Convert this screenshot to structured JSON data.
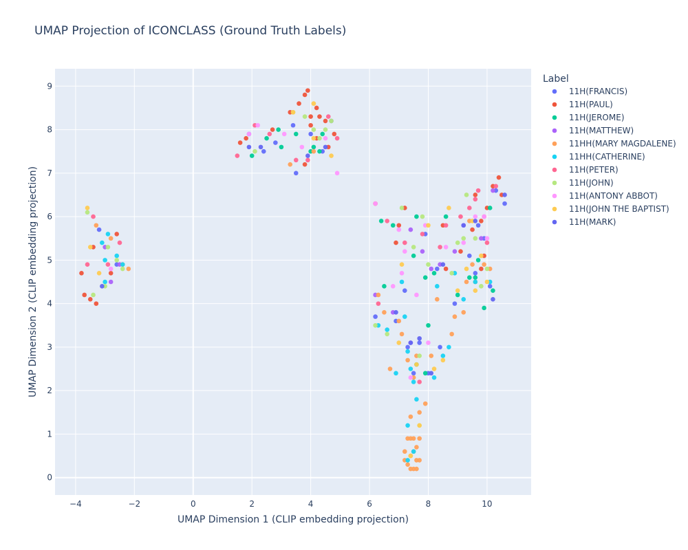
{
  "chart_data": {
    "type": "scatter",
    "title": "UMAP Projection of ICONCLASS (Ground Truth Labels)",
    "xlabel": "UMAP Dimension 1 (CLIP embedding projection)",
    "ylabel": "UMAP Dimension 2 (CLIP embedding projection)",
    "xlim": [
      -4.7,
      11.5
    ],
    "ylim": [
      -0.4,
      9.4
    ],
    "xticks": [
      -4,
      -2,
      0,
      2,
      4,
      6,
      8,
      10
    ],
    "yticks": [
      0,
      1,
      2,
      3,
      4,
      5,
      6,
      7,
      8,
      9
    ],
    "grid": true,
    "legend_title": "Label",
    "legend_position": "right",
    "series": [
      {
        "name": "11H(FRANCIS)",
        "color": "#636efa",
        "points": [
          [
            -3.2,
            5.7
          ],
          [
            -2.6,
            4.9
          ],
          [
            1.9,
            7.9
          ],
          [
            2.4,
            7.5
          ],
          [
            2.8,
            7.7
          ],
          [
            3.4,
            8.1
          ],
          [
            3.5,
            7.0
          ],
          [
            4.0,
            7.9
          ],
          [
            4.4,
            7.5
          ],
          [
            4.7,
            8.2
          ],
          [
            6.2,
            3.7
          ],
          [
            6.9,
            3.6
          ],
          [
            7.3,
            3.0
          ],
          [
            7.5,
            2.4
          ],
          [
            7.7,
            3.1
          ],
          [
            8.0,
            2.4
          ],
          [
            8.4,
            3.0
          ],
          [
            8.9,
            4.0
          ],
          [
            9.4,
            5.1
          ],
          [
            9.7,
            5.8
          ],
          [
            9.9,
            5.5
          ],
          [
            10.1,
            4.4
          ],
          [
            10.3,
            6.6
          ],
          [
            10.6,
            6.3
          ],
          [
            7.9,
            5.6
          ],
          [
            8.3,
            4.8
          ],
          [
            9.6,
            4.7
          ],
          [
            7.2,
            4.3
          ]
        ]
      },
      {
        "name": "11H(PAUL)",
        "color": "#ef553b",
        "points": [
          [
            -3.8,
            4.7
          ],
          [
            -3.7,
            4.2
          ],
          [
            -3.5,
            4.1
          ],
          [
            -3.3,
            4.0
          ],
          [
            -3.4,
            5.3
          ],
          [
            -2.6,
            5.6
          ],
          [
            -2.8,
            4.7
          ],
          [
            1.6,
            7.7
          ],
          [
            1.8,
            7.8
          ],
          [
            2.7,
            8.0
          ],
          [
            3.3,
            8.4
          ],
          [
            3.6,
            8.6
          ],
          [
            3.8,
            8.8
          ],
          [
            3.9,
            8.9
          ],
          [
            4.0,
            8.3
          ],
          [
            4.2,
            8.5
          ],
          [
            4.3,
            8.3
          ],
          [
            4.5,
            8.2
          ],
          [
            4.0,
            8.1
          ],
          [
            4.6,
            7.6
          ],
          [
            4.8,
            7.9
          ],
          [
            3.8,
            7.2
          ],
          [
            4.2,
            7.8
          ],
          [
            6.2,
            6.3
          ],
          [
            7.0,
            5.8
          ],
          [
            6.9,
            5.4
          ],
          [
            7.2,
            6.2
          ],
          [
            8.5,
            5.8
          ],
          [
            8.6,
            4.8
          ],
          [
            9.1,
            5.2
          ],
          [
            9.5,
            5.7
          ],
          [
            9.6,
            6.5
          ],
          [
            9.8,
            5.9
          ],
          [
            10.0,
            6.2
          ],
          [
            10.2,
            6.7
          ],
          [
            10.4,
            6.9
          ],
          [
            10.5,
            6.5
          ],
          [
            9.9,
            5.1
          ],
          [
            9.8,
            4.8
          ]
        ]
      },
      {
        "name": "11H(JEROME)",
        "color": "#00cc96",
        "points": [
          [
            2.0,
            7.4
          ],
          [
            2.5,
            7.8
          ],
          [
            2.9,
            8.0
          ],
          [
            3.0,
            7.6
          ],
          [
            3.5,
            7.9
          ],
          [
            4.0,
            7.5
          ],
          [
            4.1,
            7.6
          ],
          [
            4.3,
            7.5
          ],
          [
            4.4,
            7.9
          ],
          [
            6.5,
            4.4
          ],
          [
            6.4,
            5.9
          ],
          [
            6.8,
            5.8
          ],
          [
            7.5,
            5.1
          ],
          [
            7.6,
            6.0
          ],
          [
            7.9,
            4.6
          ],
          [
            8.0,
            3.5
          ],
          [
            8.2,
            4.7
          ],
          [
            9.0,
            4.2
          ],
          [
            9.4,
            4.6
          ],
          [
            9.7,
            5.0
          ],
          [
            9.9,
            3.9
          ],
          [
            10.1,
            6.2
          ],
          [
            10.2,
            4.3
          ],
          [
            7.9,
            2.4
          ],
          [
            7.6,
            2.6
          ],
          [
            8.6,
            6.0
          ],
          [
            9.6,
            4.6
          ]
        ]
      },
      {
        "name": "11H(MATTHEW)",
        "color": "#ab63fa",
        "points": [
          [
            -3.0,
            5.3
          ],
          [
            -2.8,
            4.5
          ],
          [
            -2.5,
            4.9
          ],
          [
            6.2,
            4.2
          ],
          [
            6.8,
            3.8
          ],
          [
            7.4,
            5.7
          ],
          [
            7.8,
            5.2
          ],
          [
            8.1,
            4.8
          ],
          [
            8.4,
            4.9
          ],
          [
            9.2,
            5.8
          ],
          [
            9.8,
            5.5
          ],
          [
            10.2,
            6.6
          ],
          [
            7.4,
            3.1
          ],
          [
            8.9,
            5.2
          ]
        ]
      },
      {
        "name": "11HH(MARY MAGDALENE)",
        "color": "#ffa15a",
        "points": [
          [
            -2.8,
            5.5
          ],
          [
            -2.4,
            4.9
          ],
          [
            -2.2,
            4.8
          ],
          [
            -3.3,
            5.8
          ],
          [
            3.3,
            7.2
          ],
          [
            4.1,
            7.5
          ],
          [
            6.3,
            4.2
          ],
          [
            6.5,
            3.8
          ],
          [
            6.7,
            2.5
          ],
          [
            7.0,
            3.6
          ],
          [
            7.1,
            3.3
          ],
          [
            7.3,
            2.7
          ],
          [
            7.4,
            1.4
          ],
          [
            7.5,
            2.3
          ],
          [
            7.6,
            2.8
          ],
          [
            7.7,
            1.5
          ],
          [
            7.9,
            1.7
          ],
          [
            7.2,
            0.6
          ],
          [
            7.3,
            0.3
          ],
          [
            7.4,
            0.5
          ],
          [
            7.5,
            0.2
          ],
          [
            7.6,
            0.4
          ],
          [
            7.7,
            0.4
          ],
          [
            7.2,
            0.4
          ],
          [
            7.4,
            0.9
          ],
          [
            7.5,
            0.6
          ],
          [
            7.3,
            0.9
          ],
          [
            7.5,
            0.9
          ],
          [
            7.6,
            0.7
          ],
          [
            7.7,
            0.9
          ],
          [
            7.4,
            0.2
          ],
          [
            7.6,
            0.2
          ],
          [
            8.1,
            2.8
          ],
          [
            8.3,
            4.1
          ],
          [
            8.8,
            3.3
          ],
          [
            8.9,
            3.7
          ],
          [
            9.2,
            3.8
          ],
          [
            9.3,
            4.5
          ],
          [
            9.5,
            4.9
          ],
          [
            9.9,
            4.9
          ],
          [
            10.1,
            4.8
          ],
          [
            9.6,
            4.5
          ],
          [
            9.4,
            5.9
          ]
        ]
      },
      {
        "name": "11HH(CATHERINE)",
        "color": "#19d3f3",
        "points": [
          [
            -3.0,
            5.0
          ],
          [
            -2.9,
            5.6
          ],
          [
            -3.1,
            5.4
          ],
          [
            -2.6,
            5.1
          ],
          [
            -2.4,
            4.9
          ],
          [
            -3.0,
            4.5
          ],
          [
            6.3,
            3.5
          ],
          [
            6.6,
            3.4
          ],
          [
            6.9,
            2.4
          ],
          [
            7.2,
            3.7
          ],
          [
            7.3,
            2.9
          ],
          [
            7.4,
            2.5
          ],
          [
            7.5,
            2.2
          ],
          [
            7.6,
            1.8
          ],
          [
            7.3,
            1.2
          ],
          [
            7.5,
            0.6
          ],
          [
            7.3,
            0.4
          ],
          [
            8.2,
            2.3
          ],
          [
            8.3,
            4.4
          ],
          [
            8.5,
            2.8
          ],
          [
            8.7,
            3.0
          ],
          [
            8.9,
            4.7
          ],
          [
            9.2,
            4.1
          ],
          [
            9.6,
            4.5
          ],
          [
            10.1,
            4.5
          ],
          [
            7.1,
            4.5
          ]
        ]
      },
      {
        "name": "11H(PETER)",
        "color": "#ff6692",
        "points": [
          [
            -3.6,
            4.9
          ],
          [
            -3.4,
            6.0
          ],
          [
            -2.9,
            4.9
          ],
          [
            -2.5,
            5.4
          ],
          [
            1.5,
            7.4
          ],
          [
            2.1,
            8.1
          ],
          [
            2.6,
            7.9
          ],
          [
            3.5,
            7.3
          ],
          [
            3.9,
            7.3
          ],
          [
            4.6,
            8.3
          ],
          [
            4.9,
            7.8
          ],
          [
            6.3,
            4.0
          ],
          [
            6.6,
            5.9
          ],
          [
            7.2,
            5.4
          ],
          [
            7.7,
            2.2
          ],
          [
            7.8,
            5.6
          ],
          [
            8.4,
            5.3
          ],
          [
            8.6,
            5.8
          ],
          [
            9.1,
            6.0
          ],
          [
            9.4,
            6.2
          ],
          [
            9.6,
            6.4
          ],
          [
            9.7,
            6.6
          ],
          [
            9.9,
            6.0
          ],
          [
            10.0,
            5.4
          ],
          [
            10.3,
            6.7
          ]
        ]
      },
      {
        "name": "11H(JOHN)",
        "color": "#b6e880",
        "points": [
          [
            -3.6,
            6.1
          ],
          [
            -3.4,
            4.2
          ],
          [
            -2.9,
            5.3
          ],
          [
            -2.6,
            5.0
          ],
          [
            -2.4,
            4.8
          ],
          [
            -3.0,
            4.4
          ],
          [
            2.1,
            7.5
          ],
          [
            3.4,
            8.4
          ],
          [
            3.8,
            8.3
          ],
          [
            4.1,
            8.0
          ],
          [
            4.3,
            7.8
          ],
          [
            4.5,
            8.0
          ],
          [
            4.7,
            8.2
          ],
          [
            6.2,
            3.5
          ],
          [
            6.6,
            3.3
          ],
          [
            7.1,
            6.2
          ],
          [
            7.5,
            5.3
          ],
          [
            7.7,
            2.8
          ],
          [
            7.8,
            6.0
          ],
          [
            8.0,
            4.9
          ],
          [
            8.8,
            4.7
          ],
          [
            9.0,
            5.4
          ],
          [
            9.2,
            5.5
          ],
          [
            9.6,
            5.5
          ],
          [
            9.8,
            4.4
          ],
          [
            10.0,
            4.8
          ],
          [
            9.3,
            6.5
          ],
          [
            7.7,
            1.2
          ]
        ]
      },
      {
        "name": "11H(ANTONY ABBOT)",
        "color": "#ff97ff",
        "points": [
          [
            -2.8,
            4.8
          ],
          [
            1.9,
            7.9
          ],
          [
            2.2,
            8.1
          ],
          [
            3.1,
            7.9
          ],
          [
            3.7,
            7.6
          ],
          [
            4.5,
            7.8
          ],
          [
            4.9,
            7.0
          ],
          [
            6.2,
            6.3
          ],
          [
            6.8,
            4.4
          ],
          [
            7.1,
            4.7
          ],
          [
            7.2,
            5.2
          ],
          [
            7.4,
            2.3
          ],
          [
            7.6,
            4.2
          ],
          [
            7.9,
            5.8
          ],
          [
            8.0,
            3.1
          ],
          [
            8.6,
            5.3
          ],
          [
            9.2,
            5.4
          ],
          [
            9.6,
            6.0
          ],
          [
            9.9,
            6.0
          ],
          [
            10.0,
            5.5
          ],
          [
            7.0,
            5.7
          ]
        ]
      },
      {
        "name": "11H(JOHN THE BAPTIST)",
        "color": "#fecb52",
        "points": [
          [
            -3.6,
            6.2
          ],
          [
            -3.5,
            5.3
          ],
          [
            -3.2,
            4.7
          ],
          [
            3.4,
            8.4
          ],
          [
            4.1,
            8.6
          ],
          [
            4.7,
            7.4
          ],
          [
            4.1,
            7.8
          ],
          [
            7.0,
            3.1
          ],
          [
            7.1,
            4.9
          ],
          [
            7.6,
            2.6
          ],
          [
            7.7,
            1.2
          ],
          [
            8.0,
            5.8
          ],
          [
            8.5,
            2.7
          ],
          [
            8.7,
            6.2
          ],
          [
            9.0,
            4.3
          ],
          [
            9.3,
            4.8
          ],
          [
            9.6,
            4.3
          ],
          [
            9.8,
            5.1
          ],
          [
            10.0,
            4.5
          ],
          [
            7.4,
            0.5
          ],
          [
            8.2,
            2.5
          ],
          [
            9.5,
            5.9
          ]
        ]
      },
      {
        "name": "11H(MARK)",
        "color": "#6366f1",
        "points": [
          [
            -3.1,
            4.4
          ],
          [
            1.9,
            7.6
          ],
          [
            2.3,
            7.6
          ],
          [
            3.9,
            7.4
          ],
          [
            4.5,
            7.6
          ],
          [
            6.9,
            3.8
          ],
          [
            7.4,
            3.1
          ],
          [
            8.1,
            2.4
          ],
          [
            8.5,
            4.9
          ],
          [
            9.2,
            5.8
          ],
          [
            9.6,
            5.9
          ],
          [
            10.2,
            4.1
          ],
          [
            10.6,
            6.5
          ],
          [
            7.7,
            3.2
          ]
        ]
      }
    ]
  }
}
